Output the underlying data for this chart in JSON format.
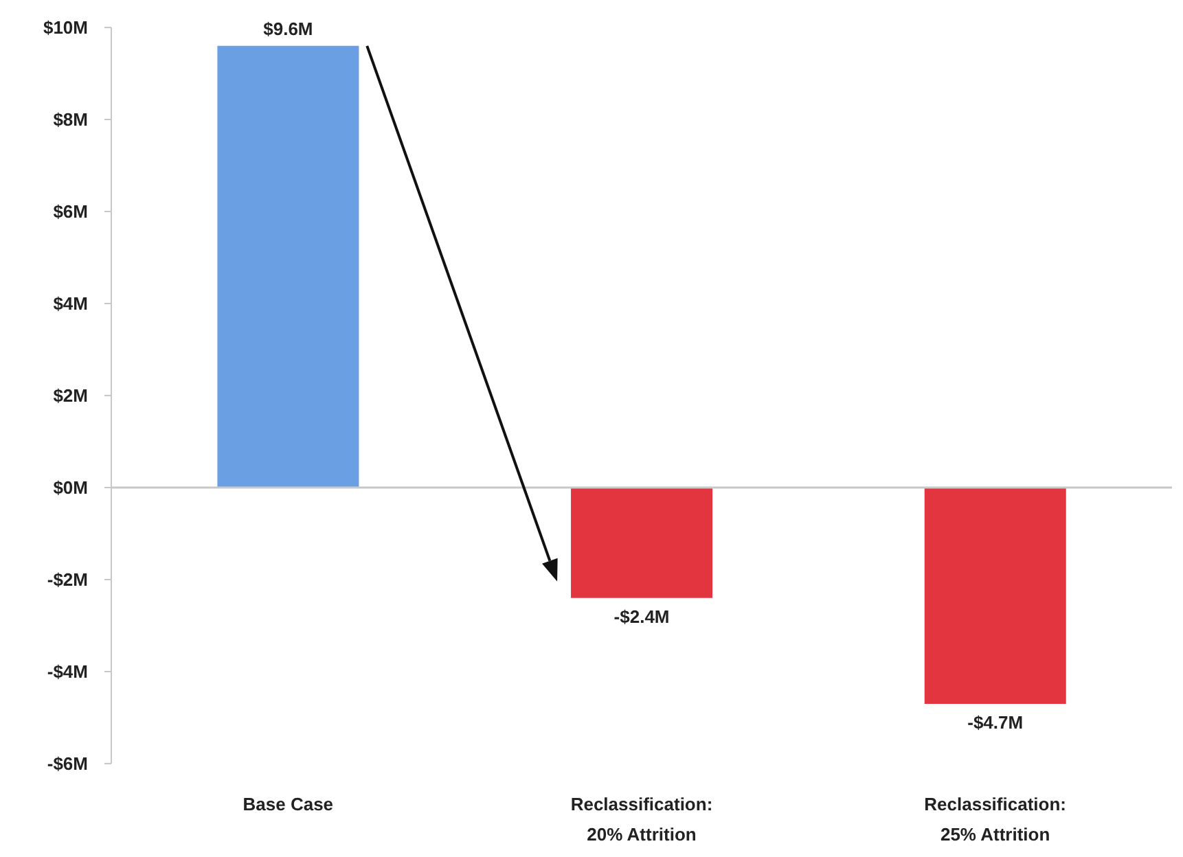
{
  "chart_data": {
    "type": "bar",
    "categories": [
      "Base Case",
      "Reclassification: 20% Attrition",
      "Reclassification: 25% Attrition"
    ],
    "values": [
      9.6,
      -2.4,
      -4.7
    ],
    "colors": [
      "#6a9fe3",
      "#e3353f",
      "#e3353f"
    ],
    "value_labels": [
      "$9.6M",
      "-$2.4M",
      "-$4.7M"
    ],
    "ylim": [
      -6,
      10
    ],
    "yticks": [
      {
        "value": -6,
        "label": "-$6M"
      },
      {
        "value": -4,
        "label": "-$4M"
      },
      {
        "value": -2,
        "label": "-$2M"
      },
      {
        "value": 0,
        "label": "$0M"
      },
      {
        "value": 2,
        "label": "$2M"
      },
      {
        "value": 4,
        "label": "$4M"
      },
      {
        "value": 6,
        "label": "$6M"
      },
      {
        "value": 8,
        "label": "$8M"
      },
      {
        "value": 10,
        "label": "$10M"
      }
    ]
  }
}
